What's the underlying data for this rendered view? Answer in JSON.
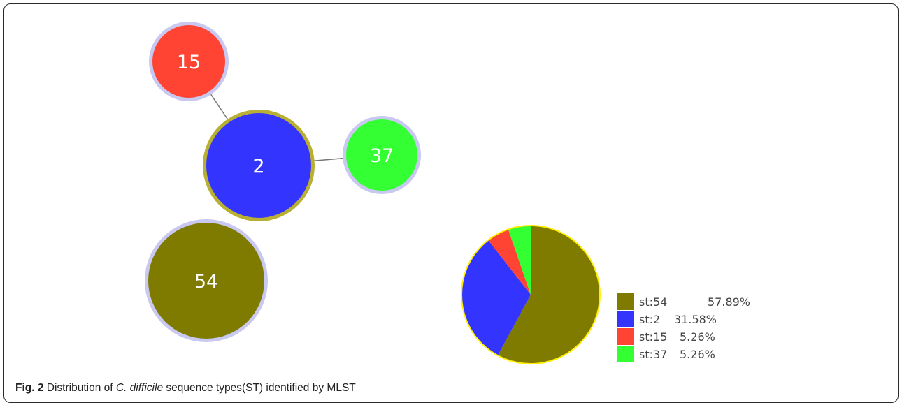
{
  "network": {
    "nodes": [
      {
        "id": "15",
        "label": "15",
        "color": "#ff4433",
        "ring": "#c8c8f0"
      },
      {
        "id": "2",
        "label": "2",
        "color": "#3434ff",
        "ring": "#b8b034"
      },
      {
        "id": "37",
        "label": "37",
        "color": "#33ff33",
        "ring": "#c8c8f0"
      },
      {
        "id": "54",
        "label": "54",
        "color": "#7f7a00",
        "ring": "#c8c8f0"
      }
    ],
    "edges": [
      {
        "from": "15",
        "to": "2"
      },
      {
        "from": "2",
        "to": "37"
      }
    ]
  },
  "chart_data": {
    "type": "pie",
    "categories": [
      "st:54",
      "st:2",
      "st:15",
      "st:37"
    ],
    "values": [
      57.89,
      31.58,
      5.26,
      5.26
    ],
    "value_labels": [
      "57.89%",
      "31.58%",
      "5.26%",
      "5.26%"
    ],
    "colors": [
      "#7f7a00",
      "#3434ff",
      "#ff4433",
      "#33ff33"
    ],
    "outline_color": "#ffee00",
    "legend_position": "bottom-right"
  },
  "caption": {
    "label": "Fig. 2",
    "text_before": " Distribution of ",
    "species": "C. difficile",
    "text_after": " sequence types(ST) identified by MLST"
  }
}
